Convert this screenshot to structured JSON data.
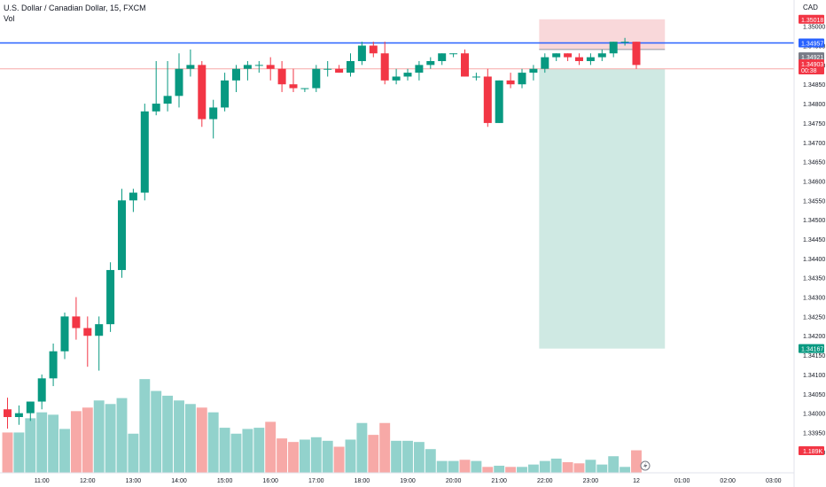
{
  "header": {
    "title": "U.S. Dollar / Canadian Dollar, 15, FXCM",
    "volume_label": "Vol",
    "currency": "CAD"
  },
  "colors": {
    "up": "#089981",
    "down": "#f23645",
    "vol_up": "#92d2cc",
    "vol_down": "#f7a9a7",
    "hline": "#2962ff",
    "target_zone": "#cfe9e3",
    "stop_zone": "#f9d8da",
    "price_axis_text": "#131722"
  },
  "chart_data": {
    "type": "candlestick",
    "title": "U.S. Dollar / Canadian Dollar, 15, FXCM",
    "y_range": [
      1.33855,
      1.35045
    ],
    "y_ticks": [
      1.35,
      1.3495,
      1.349,
      1.3485,
      1.348,
      1.3475,
      1.347,
      1.3465,
      1.346,
      1.3455,
      1.345,
      1.3445,
      1.344,
      1.3435,
      1.343,
      1.3425,
      1.342,
      1.3415,
      1.341,
      1.3405,
      1.34,
      1.3395,
      1.339
    ],
    "y_tick_labels": [
      "1.35000",
      "1.34950",
      "1.34900",
      "1.34850",
      "1.34800",
      "1.34750",
      "1.34700",
      "1.34650",
      "1.34600",
      "1.34550",
      "1.34500",
      "1.34450",
      "1.34400",
      "1.34350",
      "1.34300",
      "1.34250",
      "1.34200",
      "1.34150",
      "1.34100",
      "1.34050",
      "1.34000",
      "1.33950",
      "1.33900"
    ],
    "x_labels": [
      {
        "label": "11:00",
        "bar": 3
      },
      {
        "label": "12:00",
        "bar": 7
      },
      {
        "label": "13:00",
        "bar": 11
      },
      {
        "label": "14:00",
        "bar": 15
      },
      {
        "label": "15:00",
        "bar": 19
      },
      {
        "label": "16:00",
        "bar": 23
      },
      {
        "label": "17:00",
        "bar": 27
      },
      {
        "label": "18:00",
        "bar": 31
      },
      {
        "label": "19:00",
        "bar": 35
      },
      {
        "label": "20:00",
        "bar": 39
      },
      {
        "label": "21:00",
        "bar": 43
      },
      {
        "label": "22:00",
        "bar": 47
      },
      {
        "label": "23:00",
        "bar": 51
      },
      {
        "label": "12",
        "bar": 55
      },
      {
        "label": "01:00",
        "bar": 59
      },
      {
        "label": "02:00",
        "bar": 63
      },
      {
        "label": "03:00",
        "bar": 67
      }
    ],
    "candles": [
      {
        "o": 1.3401,
        "h": 1.3404,
        "l": 1.3396,
        "c": 1.3399,
        "v": 0.34
      },
      {
        "o": 1.3399,
        "h": 1.3402,
        "l": 1.3397,
        "c": 1.34,
        "v": 0.34
      },
      {
        "o": 1.34,
        "h": 1.3403,
        "l": 1.3398,
        "c": 1.3403,
        "v": 0.46
      },
      {
        "o": 1.3403,
        "h": 1.341,
        "l": 1.3401,
        "c": 1.3409,
        "v": 0.51
      },
      {
        "o": 1.3409,
        "h": 1.3418,
        "l": 1.3407,
        "c": 1.3416,
        "v": 0.49
      },
      {
        "o": 1.3416,
        "h": 1.3426,
        "l": 1.3414,
        "c": 1.3425,
        "v": 0.37
      },
      {
        "o": 1.3425,
        "h": 1.343,
        "l": 1.3419,
        "c": 1.3422,
        "v": 0.52
      },
      {
        "o": 1.3422,
        "h": 1.3425,
        "l": 1.3412,
        "c": 1.342,
        "v": 0.55
      },
      {
        "o": 1.342,
        "h": 1.3425,
        "l": 1.3411,
        "c": 1.3423,
        "v": 0.61
      },
      {
        "o": 1.3423,
        "h": 1.3439,
        "l": 1.3421,
        "c": 1.3437,
        "v": 0.58
      },
      {
        "o": 1.3437,
        "h": 1.3458,
        "l": 1.3435,
        "c": 1.3455,
        "v": 0.63
      },
      {
        "o": 1.3455,
        "h": 1.3458,
        "l": 1.3452,
        "c": 1.3457,
        "v": 0.33
      },
      {
        "o": 1.3457,
        "h": 1.348,
        "l": 1.3455,
        "c": 1.3478,
        "v": 0.79
      },
      {
        "o": 1.3478,
        "h": 1.3491,
        "l": 1.3477,
        "c": 1.348,
        "v": 0.69
      },
      {
        "o": 1.348,
        "h": 1.3491,
        "l": 1.3478,
        "c": 1.3482,
        "v": 0.65
      },
      {
        "o": 1.3482,
        "h": 1.3493,
        "l": 1.3479,
        "c": 1.3489,
        "v": 0.61
      },
      {
        "o": 1.3489,
        "h": 1.3494,
        "l": 1.3487,
        "c": 1.349,
        "v": 0.58
      },
      {
        "o": 1.349,
        "h": 1.3491,
        "l": 1.3474,
        "c": 1.3476,
        "v": 0.55
      },
      {
        "o": 1.3476,
        "h": 1.3481,
        "l": 1.3471,
        "c": 1.3479,
        "v": 0.51
      },
      {
        "o": 1.3479,
        "h": 1.3488,
        "l": 1.3478,
        "c": 1.3486,
        "v": 0.38
      },
      {
        "o": 1.3486,
        "h": 1.349,
        "l": 1.3483,
        "c": 1.3489,
        "v": 0.33
      },
      {
        "o": 1.3489,
        "h": 1.3491,
        "l": 1.3486,
        "c": 1.349,
        "v": 0.37
      },
      {
        "o": 1.349,
        "h": 1.3491,
        "l": 1.3488,
        "c": 1.349,
        "v": 0.38
      },
      {
        "o": 1.349,
        "h": 1.3492,
        "l": 1.3486,
        "c": 1.3489,
        "v": 0.43
      },
      {
        "o": 1.3489,
        "h": 1.3491,
        "l": 1.3483,
        "c": 1.3485,
        "v": 0.29
      },
      {
        "o": 1.3485,
        "h": 1.3489,
        "l": 1.3483,
        "c": 1.3484,
        "v": 0.26
      },
      {
        "o": 1.3484,
        "h": 1.3484,
        "l": 1.3483,
        "c": 1.3484,
        "v": 0.28
      },
      {
        "o": 1.3484,
        "h": 1.349,
        "l": 1.3483,
        "c": 1.3489,
        "v": 0.3
      },
      {
        "o": 1.3489,
        "h": 1.3491,
        "l": 1.3487,
        "c": 1.3489,
        "v": 0.27
      },
      {
        "o": 1.3489,
        "h": 1.349,
        "l": 1.3488,
        "c": 1.3488,
        "v": 0.22
      },
      {
        "o": 1.3488,
        "h": 1.3493,
        "l": 1.3487,
        "c": 1.3491,
        "v": 0.28
      },
      {
        "o": 1.3491,
        "h": 1.3496,
        "l": 1.349,
        "c": 1.3495,
        "v": 0.42
      },
      {
        "o": 1.3495,
        "h": 1.3496,
        "l": 1.3492,
        "c": 1.3493,
        "v": 0.32
      },
      {
        "o": 1.3493,
        "h": 1.3496,
        "l": 1.3485,
        "c": 1.3486,
        "v": 0.42
      },
      {
        "o": 1.3486,
        "h": 1.3489,
        "l": 1.3485,
        "c": 1.3487,
        "v": 0.27
      },
      {
        "o": 1.3487,
        "h": 1.3489,
        "l": 1.3486,
        "c": 1.3488,
        "v": 0.27
      },
      {
        "o": 1.3488,
        "h": 1.3491,
        "l": 1.3486,
        "c": 1.349,
        "v": 0.26
      },
      {
        "o": 1.349,
        "h": 1.3492,
        "l": 1.3489,
        "c": 1.3491,
        "v": 0.2
      },
      {
        "o": 1.3491,
        "h": 1.3493,
        "l": 1.349,
        "c": 1.3493,
        "v": 0.1
      },
      {
        "o": 1.3493,
        "h": 1.3493,
        "l": 1.3492,
        "c": 1.3493,
        "v": 0.1
      },
      {
        "o": 1.3493,
        "h": 1.3494,
        "l": 1.3487,
        "c": 1.3487,
        "v": 0.11
      },
      {
        "o": 1.3487,
        "h": 1.3488,
        "l": 1.3486,
        "c": 1.3487,
        "v": 0.1
      },
      {
        "o": 1.3487,
        "h": 1.3489,
        "l": 1.3474,
        "c": 1.3475,
        "v": 0.05
      },
      {
        "o": 1.3475,
        "h": 1.3486,
        "l": 1.3475,
        "c": 1.3486,
        "v": 0.06
      },
      {
        "o": 1.3486,
        "h": 1.3488,
        "l": 1.3484,
        "c": 1.3485,
        "v": 0.05
      },
      {
        "o": 1.3485,
        "h": 1.3489,
        "l": 1.3484,
        "c": 1.3488,
        "v": 0.05
      },
      {
        "o": 1.3488,
        "h": 1.349,
        "l": 1.3486,
        "c": 1.3489,
        "v": 0.07
      },
      {
        "o": 1.3489,
        "h": 1.3493,
        "l": 1.3488,
        "c": 1.3492,
        "v": 0.1
      },
      {
        "o": 1.3492,
        "h": 1.3493,
        "l": 1.3491,
        "c": 1.3493,
        "v": 0.12
      },
      {
        "o": 1.3493,
        "h": 1.3493,
        "l": 1.3491,
        "c": 1.3492,
        "v": 0.09
      },
      {
        "o": 1.3492,
        "h": 1.3493,
        "l": 1.349,
        "c": 1.3491,
        "v": 0.08
      },
      {
        "o": 1.3491,
        "h": 1.3493,
        "l": 1.349,
        "c": 1.3492,
        "v": 0.11
      },
      {
        "o": 1.3492,
        "h": 1.3494,
        "l": 1.3491,
        "c": 1.3493,
        "v": 0.07
      },
      {
        "o": 1.3493,
        "h": 1.3496,
        "l": 1.3492,
        "c": 1.3496,
        "v": 0.14
      },
      {
        "o": 1.3496,
        "h": 1.3497,
        "l": 1.3495,
        "c": 1.3496,
        "v": 0.05
      },
      {
        "o": 1.3496,
        "h": 1.3496,
        "l": 1.3489,
        "c": 1.349,
        "v": 0.19
      }
    ],
    "horizontal_lines": [
      {
        "price": 1.34957,
        "label": "1.34957",
        "color": "#2962ff"
      },
      {
        "price": 1.3489,
        "color": "#f7a9a7"
      }
    ],
    "position_tool": {
      "start_bar": 46.5,
      "end_bar": 57.5,
      "stop_top": 1.35018,
      "entry_top": 1.3494,
      "entry_bottom": 1.3489,
      "target_bottom": 1.34167
    },
    "price_labels": [
      {
        "price": 1.35018,
        "text": "1.35018",
        "bg": "#f23645"
      },
      {
        "price": 1.34957,
        "text": "1.34957",
        "bg": "#2962ff"
      },
      {
        "price": 1.34921,
        "text": "1.34921",
        "bg": "#787b86"
      },
      {
        "price": 1.34903,
        "text": "1.34903",
        "sub": "00:38",
        "bg": "#f23645"
      },
      {
        "price": 1.34167,
        "text": "1.34167",
        "bg": "#089981"
      }
    ],
    "volume_label": {
      "text": "1.189K",
      "bg": "#f23645"
    }
  }
}
